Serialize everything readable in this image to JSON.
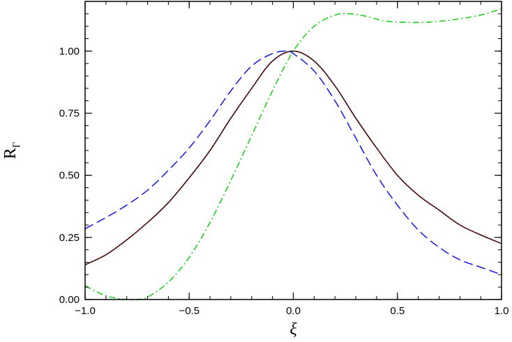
{
  "chart_data": {
    "type": "line",
    "xlabel": "ξ",
    "ylabel": "R",
    "ylabel_sub": "Γ",
    "xlim": [
      -1.0,
      1.0
    ],
    "ylim": [
      0.0,
      1.2
    ],
    "x_ticks": [
      -1.0,
      -0.5,
      0.0,
      0.5,
      1.0
    ],
    "x_tick_labels": [
      "−1.0",
      "−0.5",
      "0.0",
      "0.5",
      "1.0"
    ],
    "y_ticks": [
      0.0,
      0.25,
      0.5,
      0.75,
      1.0
    ],
    "y_tick_labels": [
      "0.00",
      "0.25",
      "0.50",
      "0.75",
      "1.00"
    ],
    "grid": false,
    "series": [
      {
        "color": "#000000",
        "style": "solid",
        "x": [
          -1.0,
          -0.9,
          -0.8,
          -0.7,
          -0.6,
          -0.5,
          -0.4,
          -0.3,
          -0.2,
          -0.1,
          0.0,
          0.1,
          0.2,
          0.3,
          0.4,
          0.5,
          0.6,
          0.7,
          0.8,
          0.9,
          1.0
        ],
        "y": [
          0.14,
          0.18,
          0.24,
          0.31,
          0.39,
          0.49,
          0.6,
          0.73,
          0.85,
          0.96,
          1.0,
          0.96,
          0.86,
          0.73,
          0.61,
          0.5,
          0.42,
          0.36,
          0.3,
          0.26,
          0.225
        ]
      },
      {
        "color": "#e02020",
        "style": "dotted",
        "x": [
          -1.0,
          -0.9,
          -0.8,
          -0.7,
          -0.6,
          -0.5,
          -0.4,
          -0.3,
          -0.2,
          -0.1,
          0.0,
          0.1,
          0.2,
          0.3,
          0.4,
          0.5,
          0.6,
          0.7,
          0.8,
          0.9,
          1.0
        ],
        "y": [
          0.14,
          0.18,
          0.24,
          0.31,
          0.39,
          0.49,
          0.6,
          0.73,
          0.85,
          0.96,
          1.0,
          0.96,
          0.86,
          0.73,
          0.61,
          0.5,
          0.42,
          0.36,
          0.3,
          0.26,
          0.225
        ]
      },
      {
        "color": "#2020e0",
        "style": "dashed",
        "x": [
          -1.0,
          -0.9,
          -0.8,
          -0.7,
          -0.6,
          -0.5,
          -0.4,
          -0.3,
          -0.2,
          -0.1,
          -0.03,
          0.0,
          0.1,
          0.2,
          0.3,
          0.4,
          0.5,
          0.6,
          0.7,
          0.8,
          0.9,
          1.0
        ],
        "y": [
          0.285,
          0.33,
          0.38,
          0.44,
          0.52,
          0.61,
          0.72,
          0.84,
          0.94,
          0.99,
          1.0,
          0.99,
          0.92,
          0.8,
          0.65,
          0.5,
          0.38,
          0.28,
          0.21,
          0.16,
          0.13,
          0.1
        ]
      },
      {
        "color": "#20d020",
        "style": "dashdot",
        "x": [
          -1.0,
          -0.9,
          -0.8,
          -0.75,
          -0.7,
          -0.6,
          -0.5,
          -0.4,
          -0.3,
          -0.2,
          -0.1,
          0.0,
          0.1,
          0.2,
          0.27,
          0.35,
          0.45,
          0.6,
          0.7,
          0.8,
          0.9,
          1.0
        ],
        "y": [
          0.055,
          0.015,
          0.0,
          0.0,
          0.01,
          0.07,
          0.17,
          0.31,
          0.48,
          0.66,
          0.84,
          1.0,
          1.1,
          1.145,
          1.15,
          1.14,
          1.12,
          1.115,
          1.12,
          1.13,
          1.145,
          1.17
        ]
      }
    ]
  }
}
